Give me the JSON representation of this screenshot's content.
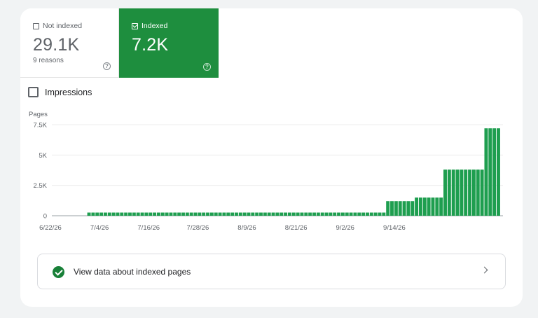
{
  "tiles": {
    "not_indexed": {
      "label": "Not indexed",
      "value": "29.1K",
      "sub": "9 reasons",
      "checked": false
    },
    "indexed": {
      "label": "Indexed",
      "value": "7.2K",
      "checked": true,
      "color": "#1e8e3e"
    }
  },
  "impressions": {
    "label": "Impressions",
    "checked": false
  },
  "chart_data": {
    "type": "bar",
    "ylabel": "Pages",
    "ylim": [
      0,
      7500
    ],
    "yticks": [
      "0",
      "2.5K",
      "5K",
      "7.5K"
    ],
    "ytick_values": [
      0,
      2500,
      5000,
      7500
    ],
    "xticks": [
      "6/22/26",
      "7/4/26",
      "7/16/26",
      "7/28/26",
      "8/9/26",
      "8/21/26",
      "9/2/26",
      "9/14/26"
    ],
    "bar_color": "#1e9e4f",
    "x_start": "2026-06-22",
    "values": [
      0,
      0,
      0,
      0,
      0,
      0,
      0,
      0,
      0,
      260,
      260,
      260,
      260,
      260,
      260,
      260,
      260,
      260,
      260,
      260,
      260,
      260,
      260,
      260,
      260,
      260,
      260,
      260,
      260,
      260,
      260,
      260,
      260,
      260,
      260,
      260,
      260,
      260,
      260,
      260,
      260,
      260,
      260,
      260,
      260,
      260,
      260,
      260,
      260,
      260,
      260,
      260,
      260,
      260,
      260,
      260,
      260,
      260,
      260,
      260,
      260,
      260,
      260,
      260,
      260,
      260,
      260,
      260,
      260,
      260,
      260,
      260,
      260,
      260,
      260,
      260,
      260,
      260,
      260,
      260,
      260,
      260,
      1200,
      1200,
      1200,
      1200,
      1200,
      1200,
      1200,
      1500,
      1500,
      1500,
      1500,
      1500,
      1500,
      1500,
      3800,
      3800,
      3800,
      3800,
      3800,
      3800,
      3800,
      3800,
      3800,
      3800,
      7200,
      7200,
      7200,
      7200
    ]
  },
  "link": {
    "label": "View data about indexed pages"
  },
  "icons": {
    "help": "help-circle-icon",
    "status": "check-circle-icon",
    "arrow": "chevron-right-icon"
  }
}
